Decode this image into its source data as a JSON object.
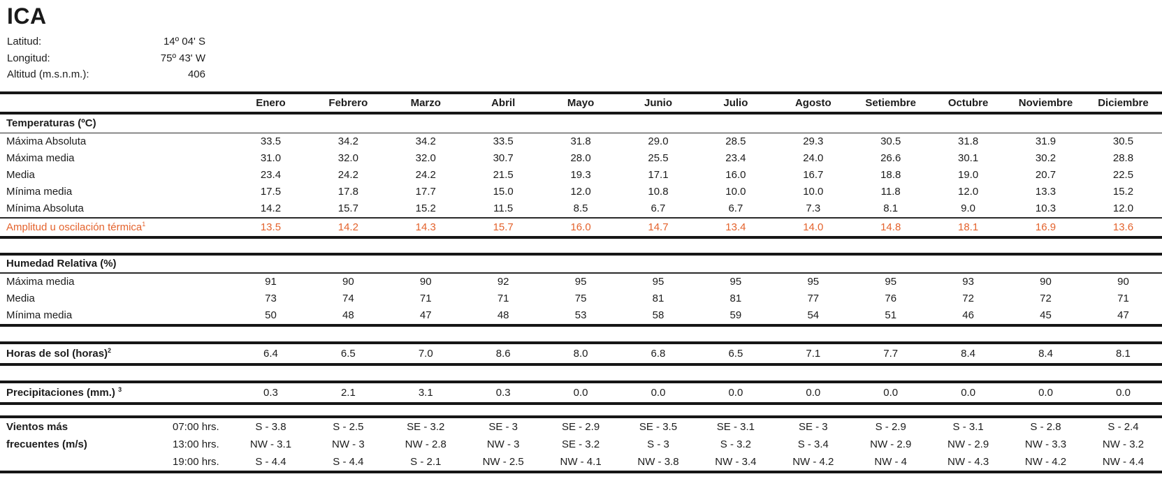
{
  "station": {
    "name": "ICA",
    "latitude_label": "Latitud:",
    "latitude": "14º 04' S",
    "longitude_label": "Longitud:",
    "longitude": "75º 43' W",
    "altitude_label": "Altitud (m.s.n.m.):",
    "altitude": "406"
  },
  "colors": {
    "accent_orange": "#E4632D",
    "text": "#1c1c1c",
    "rule": "#161616"
  },
  "table": {
    "months": [
      "Enero",
      "Febrero",
      "Marzo",
      "Abril",
      "Mayo",
      "Junio",
      "Julio",
      "Agosto",
      "Setiembre",
      "Octubre",
      "Noviembre",
      "Diciembre"
    ],
    "temperaturas": {
      "title": "Temperaturas (ºC)",
      "rows": [
        {
          "label": "Máxima Absoluta",
          "values": [
            "33.5",
            "34.2",
            "34.2",
            "33.5",
            "31.8",
            "29.0",
            "28.5",
            "29.3",
            "30.5",
            "31.8",
            "31.9",
            "30.5"
          ]
        },
        {
          "label": "Máxima media",
          "values": [
            "31.0",
            "32.0",
            "32.0",
            "30.7",
            "28.0",
            "25.5",
            "23.4",
            "24.0",
            "26.6",
            "30.1",
            "30.2",
            "28.8"
          ]
        },
        {
          "label": "Media",
          "values": [
            "23.4",
            "24.2",
            "24.2",
            "21.5",
            "19.3",
            "17.1",
            "16.0",
            "16.7",
            "18.8",
            "19.0",
            "20.7",
            "22.5"
          ]
        },
        {
          "label": "Mínima media",
          "values": [
            "17.5",
            "17.8",
            "17.7",
            "15.0",
            "12.0",
            "10.8",
            "10.0",
            "10.0",
            "11.8",
            "12.0",
            "13.3",
            "15.2"
          ]
        },
        {
          "label": "Mínima Absoluta",
          "values": [
            "14.2",
            "15.7",
            "15.2",
            "11.5",
            "8.5",
            "6.7",
            "6.7",
            "7.3",
            "8.1",
            "9.0",
            "10.3",
            "12.0"
          ]
        }
      ],
      "amplitud": {
        "label": "Amplitud u oscilación térmica",
        "footnote": "1",
        "values": [
          "13.5",
          "14.2",
          "14.3",
          "15.7",
          "16.0",
          "14.7",
          "13.4",
          "14.0",
          "14.8",
          "18.1",
          "16.9",
          "13.6"
        ]
      }
    },
    "humedad": {
      "title": "Humedad Relativa (%)",
      "rows": [
        {
          "label": "Máxima media",
          "values": [
            "91",
            "90",
            "90",
            "92",
            "95",
            "95",
            "95",
            "95",
            "95",
            "93",
            "90",
            "90"
          ]
        },
        {
          "label": "Media",
          "values": [
            "73",
            "74",
            "71",
            "71",
            "75",
            "81",
            "81",
            "77",
            "76",
            "72",
            "72",
            "71"
          ]
        },
        {
          "label": "Mínima media",
          "values": [
            "50",
            "48",
            "47",
            "48",
            "53",
            "58",
            "59",
            "54",
            "51",
            "46",
            "45",
            "47"
          ]
        }
      ]
    },
    "horas_sol": {
      "label": "Horas de sol (horas)",
      "footnote": "2",
      "values": [
        "6.4",
        "6.5",
        "7.0",
        "8.6",
        "8.0",
        "6.8",
        "6.5",
        "7.1",
        "7.7",
        "8.4",
        "8.4",
        "8.1"
      ]
    },
    "precipitaciones": {
      "label": "Precipitaciones (mm.)",
      "footnote": "3",
      "values": [
        "0.3",
        "2.1",
        "3.1",
        "0.3",
        "0.0",
        "0.0",
        "0.0",
        "0.0",
        "0.0",
        "0.0",
        "0.0",
        "0.0"
      ]
    },
    "vientos": {
      "label_line1": "Vientos más",
      "label_line2": "frecuentes (m/s)",
      "rows": [
        {
          "time": "07:00 hrs.",
          "values": [
            "S - 3.8",
            "S - 2.5",
            "SE - 3.2",
            "SE - 3",
            "SE - 2.9",
            "SE - 3.5",
            "SE - 3.1",
            "SE - 3",
            "S - 2.9",
            "S - 3.1",
            "S - 2.8",
            "S - 2.4"
          ]
        },
        {
          "time": "13:00 hrs.",
          "values": [
            "NW - 3.1",
            "NW - 3",
            "NW - 2.8",
            "NW - 3",
            "SE - 3.2",
            "S - 3",
            "S - 3.2",
            "S - 3.4",
            "NW - 2.9",
            "NW - 2.9",
            "NW - 3.3",
            "NW - 3.2"
          ]
        },
        {
          "time": "19:00 hrs.",
          "values": [
            "S - 4.4",
            "S - 4.4",
            "S - 2.1",
            "NW - 2.5",
            "NW - 4.1",
            "NW - 3.8",
            "NW - 3.4",
            "NW - 4.2",
            "NW - 4",
            "NW - 4.3",
            "NW - 4.2",
            "NW - 4.4"
          ]
        }
      ]
    }
  }
}
